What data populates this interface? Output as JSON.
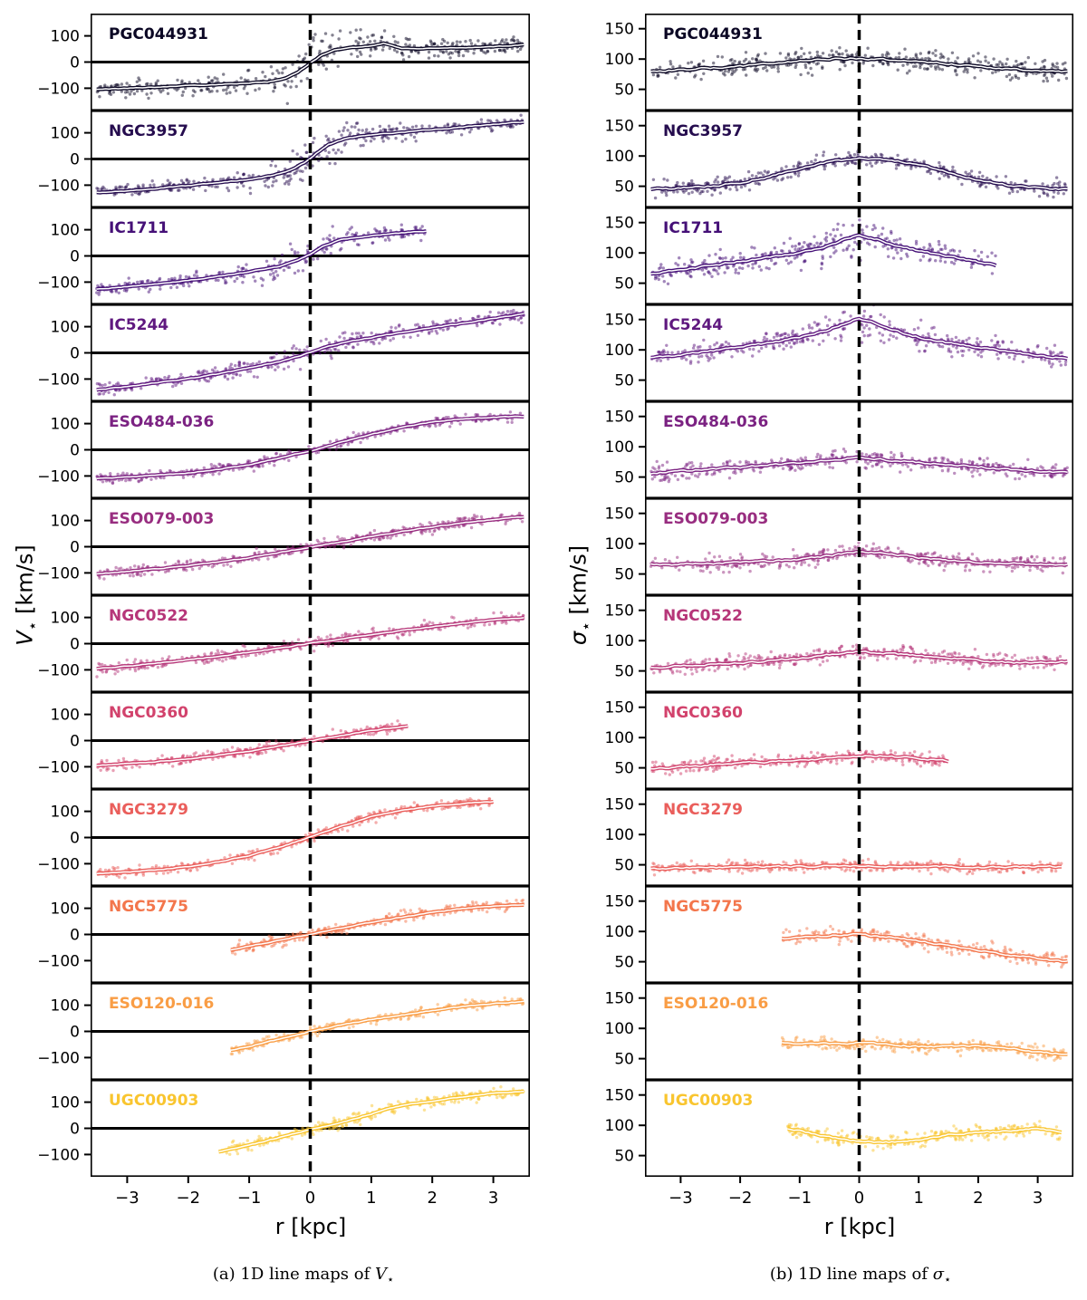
{
  "figure": {
    "xlabel": "r [kpc]",
    "captions": {
      "a_prefix": "(a) 1D line maps of ",
      "a_symbol": "V",
      "a_sub": "⋆",
      "b_prefix": "(b) 1D line maps of ",
      "b_symbol": "σ",
      "b_sub": "⋆"
    }
  },
  "chart_data": [
    {
      "type": "scatter",
      "id": "V",
      "ylabel_symbol": "V",
      "ylabel_sub": "⋆",
      "ylabel_unit": " [km/s]",
      "xlabel": "r [kpc]",
      "xlim": [
        -3.6,
        3.6
      ],
      "ylim": [
        -185,
        185
      ],
      "xticks": [
        -3,
        -2,
        -1,
        0,
        1,
        2,
        3
      ],
      "yticks": [
        -100,
        0,
        100
      ],
      "zero_line": true,
      "dashed_vline_x": 0,
      "grid": false,
      "legend": "none",
      "series": [
        {
          "name": "PGC044931",
          "color": "#0b0724",
          "spread": 20,
          "spread_center": 40,
          "x": [
            -3.5,
            -3,
            -2.5,
            -2,
            -1.5,
            -1,
            -0.7,
            -0.4,
            -0.2,
            0,
            0.2,
            0.4,
            0.7,
            1,
            1.2,
            1.5,
            2,
            2.5,
            3,
            3.5
          ],
          "y": [
            -105,
            -100,
            -96,
            -90,
            -85,
            -80,
            -76,
            -62,
            -38,
            -5,
            28,
            45,
            55,
            62,
            72,
            52,
            52,
            55,
            58,
            66
          ]
        },
        {
          "name": "NGC3957",
          "color": "#250c4e",
          "spread": 16,
          "spread_center": 28,
          "x": [
            -3.5,
            -3,
            -2.5,
            -2,
            -1.5,
            -1,
            -0.6,
            -0.3,
            -0.1,
            0,
            0.1,
            0.3,
            0.6,
            1,
            1.5,
            2,
            2.5,
            3,
            3.5
          ],
          "y": [
            -128,
            -121,
            -112,
            -102,
            -90,
            -78,
            -62,
            -40,
            -15,
            2,
            22,
            55,
            80,
            92,
            102,
            112,
            122,
            132,
            142
          ]
        },
        {
          "name": "IC1711",
          "color": "#451077",
          "spread": 15,
          "spread_center": 20,
          "x": [
            -3.5,
            -3,
            -2.5,
            -2,
            -1.5,
            -1,
            -0.5,
            -0.2,
            0,
            0.2,
            0.5,
            0.8,
            1.2,
            1.6,
            1.9
          ],
          "y": [
            -127,
            -117,
            -106,
            -94,
            -78,
            -60,
            -40,
            -16,
            5,
            35,
            62,
            72,
            82,
            90,
            94
          ]
        },
        {
          "name": "IC5244",
          "color": "#5f187f",
          "spread": 15,
          "spread_center": 15,
          "x": [
            -3.5,
            -3,
            -2.5,
            -2,
            -1.5,
            -1,
            -0.5,
            -0.2,
            0,
            0.3,
            0.6,
            1,
            1.5,
            2,
            2.5,
            3,
            3.5
          ],
          "y": [
            -142,
            -128,
            -113,
            -99,
            -80,
            -58,
            -34,
            -14,
            2,
            25,
            42,
            58,
            78,
            96,
            113,
            131,
            150
          ]
        },
        {
          "name": "ESO484-036",
          "color": "#7b2282",
          "spread": 12,
          "spread_center": 0,
          "x": [
            -3.5,
            -3,
            -2.5,
            -2,
            -1.5,
            -1,
            -0.5,
            0,
            0.5,
            1,
            1.5,
            2,
            2.5,
            3,
            3.5
          ],
          "y": [
            -110,
            -104,
            -97,
            -88,
            -74,
            -57,
            -31,
            -4,
            28,
            58,
            86,
            106,
            118,
            124,
            128
          ]
        },
        {
          "name": "ESO079-003",
          "color": "#982d80",
          "spread": 13,
          "spread_center": 0,
          "x": [
            -3.5,
            -3,
            -2.5,
            -2,
            -1.5,
            -1,
            -0.5,
            0,
            0.5,
            1,
            1.5,
            2,
            2.5,
            3,
            3.5
          ],
          "y": [
            -104,
            -95,
            -84,
            -72,
            -58,
            -42,
            -22,
            -2,
            18,
            38,
            58,
            76,
            91,
            104,
            114
          ]
        },
        {
          "name": "NGC0522",
          "color": "#b63679",
          "spread": 14,
          "spread_center": 0,
          "x": [
            -3.5,
            -3,
            -2.5,
            -2,
            -1.5,
            -1,
            -0.5,
            0,
            0.5,
            1,
            1.5,
            2,
            2.5,
            3,
            3.5
          ],
          "y": [
            -95,
            -86,
            -74,
            -62,
            -48,
            -33,
            -17,
            1,
            18,
            34,
            50,
            64,
            78,
            91,
            99
          ]
        },
        {
          "name": "NGC0360",
          "color": "#d2426c",
          "spread": 12,
          "spread_center": 0,
          "x": [
            -3.5,
            -3,
            -2.5,
            -2,
            -1.5,
            -1,
            -0.5,
            0,
            0.5,
            1,
            1.3,
            1.6
          ],
          "y": [
            -94,
            -88,
            -80,
            -70,
            -56,
            -41,
            -21,
            -1,
            19,
            38,
            48,
            55
          ]
        },
        {
          "name": "NGC3279",
          "color": "#ea5e5b",
          "spread": 12,
          "spread_center": 0,
          "x": [
            -3.5,
            -3,
            -2.5,
            -2,
            -1.5,
            -1,
            -0.5,
            0,
            0.5,
            1,
            1.5,
            2,
            2.5,
            3
          ],
          "y": [
            -138,
            -132,
            -123,
            -111,
            -93,
            -69,
            -37,
            2,
            43,
            79,
            103,
            120,
            130,
            136
          ]
        },
        {
          "name": "NGC5775",
          "color": "#f3764c",
          "spread": 13,
          "spread_center": 0,
          "x": [
            -1.3,
            -1,
            -0.5,
            0,
            0.5,
            1,
            1.5,
            2,
            2.5,
            3,
            3.5
          ],
          "y": [
            -58,
            -45,
            -22,
            1,
            24,
            46,
            66,
            85,
            99,
            108,
            114
          ]
        },
        {
          "name": "ESO120-016",
          "color": "#f99d45",
          "spread": 12,
          "spread_center": 0,
          "x": [
            -1.3,
            -1,
            -0.5,
            0,
            0.5,
            1,
            1.5,
            2,
            2.5,
            3,
            3.5
          ],
          "y": [
            -72,
            -57,
            -29,
            -1,
            24,
            45,
            62,
            80,
            95,
            106,
            114
          ]
        },
        {
          "name": "UGC00903",
          "color": "#f9c52f",
          "spread": 14,
          "spread_center": 0,
          "x": [
            -1.5,
            -1,
            -0.5,
            0,
            0.5,
            1,
            1.5,
            2,
            2.5,
            3,
            3.5
          ],
          "y": [
            -88,
            -65,
            -35,
            -5,
            22,
            55,
            88,
            104,
            120,
            134,
            141
          ]
        }
      ]
    },
    {
      "type": "scatter",
      "id": "sigma",
      "ylabel_symbol": "σ",
      "ylabel_sub": "⋆",
      "ylabel_unit": " [km/s]",
      "xlabel": "r [kpc]",
      "xlim": [
        -3.6,
        3.6
      ],
      "ylim": [
        15,
        175
      ],
      "xticks": [
        -3,
        -2,
        -1,
        0,
        1,
        2,
        3
      ],
      "yticks": [
        50,
        100,
        150
      ],
      "zero_line": false,
      "dashed_vline_x": 0,
      "grid": false,
      "legend": "none",
      "series": [
        {
          "name": "PGC044931",
          "color": "#0b0724",
          "spread": 12,
          "spread_center": 0,
          "x": [
            -3.5,
            -3,
            -2.5,
            -2,
            -1.5,
            -1,
            -0.5,
            0,
            0.5,
            1,
            1.5,
            2,
            2.5,
            3,
            3.5
          ],
          "y": [
            79,
            82,
            85,
            88,
            93,
            97,
            100,
            101,
            99,
            96,
            92,
            88,
            84,
            81,
            79
          ]
        },
        {
          "name": "NGC3957",
          "color": "#250c4e",
          "spread": 9,
          "spread_center": 0,
          "x": [
            -3.5,
            -3,
            -2.5,
            -2,
            -1.5,
            -1,
            -0.5,
            0,
            0.5,
            1,
            1.5,
            2,
            2.5,
            3,
            3.5
          ],
          "y": [
            45,
            47,
            50,
            56,
            66,
            79,
            91,
            96,
            94,
            86,
            72,
            60,
            52,
            47,
            45
          ]
        },
        {
          "name": "IC1711",
          "color": "#451077",
          "spread": 11,
          "spread_center": 8,
          "x": [
            -3.5,
            -3,
            -2.5,
            -2,
            -1.5,
            -1,
            -0.5,
            -0.2,
            0,
            0.3,
            0.6,
            1,
            1.5,
            2,
            2.3
          ],
          "y": [
            66,
            72,
            79,
            86,
            93,
            100,
            113,
            124,
            130,
            123,
            112,
            104,
            94,
            85,
            80
          ]
        },
        {
          "name": "IC5244",
          "color": "#5f187f",
          "spread": 10,
          "spread_center": 10,
          "x": [
            -3.5,
            -3,
            -2.5,
            -2,
            -1.5,
            -1,
            -0.5,
            -0.2,
            0,
            0.2,
            0.5,
            1,
            1.5,
            2,
            2.5,
            3,
            3.5
          ],
          "y": [
            86,
            92,
            98,
            104,
            112,
            120,
            133,
            146,
            152,
            146,
            134,
            121,
            111,
            104,
            97,
            91,
            86
          ]
        },
        {
          "name": "ESO484-036",
          "color": "#7b2282",
          "spread": 9,
          "spread_center": 0,
          "x": [
            -3.5,
            -3,
            -2.5,
            -2,
            -1.5,
            -1,
            -0.5,
            0,
            0.5,
            1,
            1.5,
            2,
            2.5,
            3,
            3.5
          ],
          "y": [
            56,
            60,
            63,
            66,
            70,
            73,
            78,
            82,
            78,
            74,
            70,
            67,
            63,
            60,
            57
          ]
        },
        {
          "name": "ESO079-003",
          "color": "#982d80",
          "spread": 8,
          "spread_center": 0,
          "x": [
            -3.5,
            -3,
            -2.5,
            -2,
            -1.5,
            -1,
            -0.5,
            0,
            0.5,
            1,
            1.5,
            2,
            2.5,
            3,
            3.5
          ],
          "y": [
            66,
            66,
            67,
            69,
            71,
            74,
            80,
            87,
            84,
            77,
            72,
            69,
            67,
            66,
            65
          ]
        },
        {
          "name": "NGC0522",
          "color": "#b63679",
          "spread": 8,
          "spread_center": 0,
          "x": [
            -3.5,
            -3,
            -2.5,
            -2,
            -1.5,
            -1,
            -0.5,
            0,
            0.5,
            1,
            1.5,
            2,
            2.5,
            3,
            3.5
          ],
          "y": [
            55,
            58,
            61,
            63,
            67,
            71,
            77,
            82,
            79,
            75,
            71,
            68,
            64,
            63,
            66
          ]
        },
        {
          "name": "NGC0360",
          "color": "#d2426c",
          "spread": 7,
          "spread_center": 0,
          "x": [
            -3.5,
            -3,
            -2.5,
            -2,
            -1.5,
            -1,
            -0.5,
            0,
            0.5,
            1,
            1.5
          ],
          "y": [
            48,
            52,
            55,
            58,
            60,
            62,
            66,
            70,
            69,
            66,
            61
          ]
        },
        {
          "name": "NGC3279",
          "color": "#ea5e5b",
          "spread": 6,
          "spread_center": 0,
          "x": [
            -3.5,
            -3,
            -2.5,
            -2,
            -1.5,
            -1,
            -0.5,
            0,
            0.5,
            1,
            1.5,
            2,
            2.5,
            3,
            3.4
          ],
          "y": [
            44,
            45,
            46,
            46,
            47,
            47,
            48,
            48,
            48,
            47,
            47,
            46,
            46,
            47,
            47
          ]
        },
        {
          "name": "NGC5775",
          "color": "#f3764c",
          "spread": 9,
          "spread_center": 0,
          "x": [
            -1.3,
            -1,
            -0.5,
            0,
            0.5,
            1,
            1.5,
            2,
            2.5,
            3,
            3.5
          ],
          "y": [
            88,
            90,
            93,
            95,
            91,
            84,
            77,
            69,
            62,
            56,
            50
          ]
        },
        {
          "name": "ESO120-016",
          "color": "#f99d45",
          "spread": 8,
          "spread_center": 0,
          "x": [
            -1.3,
            -1,
            -0.5,
            0,
            0.5,
            1,
            1.5,
            2,
            2.5,
            3,
            3.5
          ],
          "y": [
            76,
            75,
            75,
            76,
            73,
            70,
            70,
            72,
            67,
            61,
            57
          ]
        },
        {
          "name": "UGC00903",
          "color": "#f9c52f",
          "spread": 8,
          "spread_center": 0,
          "x": [
            -1.2,
            -1,
            -0.5,
            0,
            0.5,
            1,
            1.5,
            2,
            2.5,
            3,
            3.4
          ],
          "y": [
            95,
            91,
            81,
            73,
            72,
            77,
            84,
            88,
            91,
            95,
            90
          ]
        }
      ]
    }
  ]
}
